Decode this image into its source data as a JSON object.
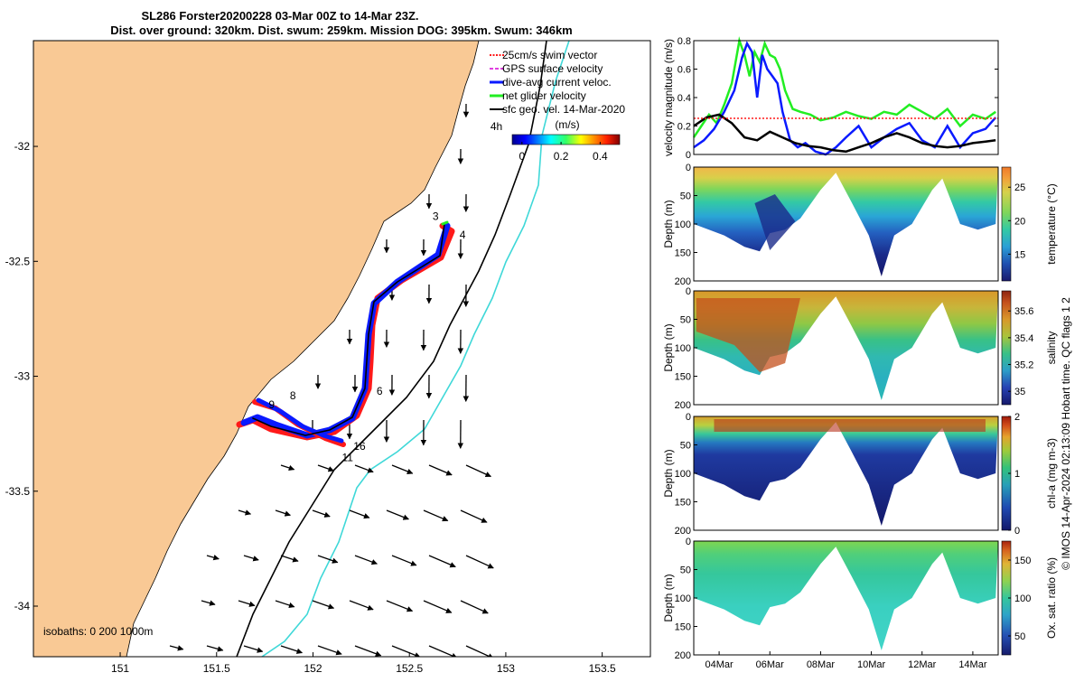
{
  "title": {
    "line1": "SL286 Forster20200228 03-Mar 00Z to 14-Mar 23Z.",
    "line2": "Dist. over ground: 320km. Dist. swum: 259km. Mission DOG: 395km. Swum: 346km"
  },
  "credit": "© IMOS 14-Apr-2024 02:13:09 Hobart time. QC flags 1  2",
  "colors": {
    "land": "#f9c995",
    "track_red": "#ff1a1a",
    "track_blue": "#0a1aff",
    "green": "#22ee22",
    "cyan": "#3fd8d8",
    "black": "#000000"
  },
  "chart_data": [
    {
      "type": "map",
      "name": "track-map",
      "x_ticks": [
        "151",
        "151.5",
        "152",
        "152.5",
        "153",
        "153.5"
      ],
      "x_tick_values": [
        151,
        151.5,
        152,
        152.5,
        153,
        153.5
      ],
      "y_ticks": [
        "-32",
        "-32.5",
        "-33",
        "-33.5",
        "-34"
      ],
      "y_tick_values": [
        -32,
        -32.5,
        -33,
        -33.5,
        -34
      ],
      "xlim": [
        150.55,
        153.75
      ],
      "ylim": [
        -34.22,
        -31.54
      ],
      "legend": [
        {
          "label": "25cm/s swim vector",
          "color": "#ff1a1a",
          "style": "dotted"
        },
        {
          "label": "GPS surface velocity",
          "color": "#e040e0",
          "style": "dashed"
        },
        {
          "label": "dive-avg current veloc.",
          "color": "#0a1aff",
          "style": "solid"
        },
        {
          "label": "net glider velocity",
          "color": "#22ee22",
          "style": "solid"
        },
        {
          "label": "sfc geo. vel. 14-Mar-2020",
          "color": "#000000",
          "style": "solid"
        }
      ],
      "colorbar": {
        "unit": "(m/s)",
        "ticks": [
          "0",
          "0.2",
          "0.4"
        ],
        "range": [
          -0.05,
          0.5
        ]
      },
      "isobath_label": "isobaths: 0   200  1000m",
      "track_labels": [
        {
          "text": "4h",
          "lon": 152.92,
          "lat": -31.93
        },
        {
          "text": "3",
          "lon": 152.62,
          "lat": -32.32
        },
        {
          "text": "4",
          "lon": 152.76,
          "lat": -32.4
        },
        {
          "text": "6",
          "lon": 152.33,
          "lat": -33.08
        },
        {
          "text": "9",
          "lon": 151.77,
          "lat": -33.14
        },
        {
          "text": "8",
          "lon": 151.88,
          "lat": -33.1
        },
        {
          "text": "16",
          "lon": 152.21,
          "lat": -33.32
        },
        {
          "text": "11",
          "lon": 152.15,
          "lat": -33.37
        }
      ]
    },
    {
      "type": "line",
      "name": "velocity-magnitude",
      "ylabel": "velocity magnitude (m/s)",
      "ylim": [
        0,
        0.8
      ],
      "y_ticks": [
        "0",
        "0.2",
        "0.4",
        "0.6",
        "0.8"
      ],
      "y_tick_values": [
        0,
        0.2,
        0.4,
        0.6,
        0.8
      ],
      "xlim": [
        3,
        15
      ],
      "series": [
        {
          "color": "#22ee22",
          "x": [
            3,
            3.3,
            3.6,
            3.9,
            4.2,
            4.5,
            4.8,
            5.0,
            5.2,
            5.4,
            5.6,
            5.8,
            6.0,
            6.2,
            6.4,
            6.6,
            6.9,
            7.2,
            7.6,
            8.0,
            8.5,
            9.0,
            9.5,
            10.0,
            10.5,
            11.0,
            11.5,
            12.0,
            12.5,
            13.0,
            13.5,
            14.0,
            14.5,
            14.9
          ],
          "y": [
            0.12,
            0.2,
            0.28,
            0.22,
            0.35,
            0.5,
            0.8,
            0.7,
            0.55,
            0.72,
            0.65,
            0.78,
            0.7,
            0.68,
            0.6,
            0.45,
            0.32,
            0.3,
            0.28,
            0.24,
            0.26,
            0.3,
            0.27,
            0.25,
            0.3,
            0.28,
            0.35,
            0.3,
            0.25,
            0.32,
            0.2,
            0.28,
            0.25,
            0.3
          ]
        },
        {
          "color": "#0a1aff",
          "x": [
            3,
            3.4,
            3.8,
            4.2,
            4.6,
            4.9,
            5.1,
            5.3,
            5.5,
            5.7,
            5.9,
            6.1,
            6.3,
            6.5,
            6.8,
            7.1,
            7.4,
            7.8,
            8.2,
            8.6,
            9.0,
            9.5,
            10.0,
            10.5,
            11.0,
            11.5,
            12.0,
            12.5,
            13.0,
            13.5,
            14.0,
            14.5,
            14.9
          ],
          "y": [
            0.05,
            0.1,
            0.18,
            0.3,
            0.45,
            0.68,
            0.78,
            0.72,
            0.4,
            0.7,
            0.6,
            0.55,
            0.5,
            0.3,
            0.1,
            0.05,
            0.08,
            0.02,
            0.0,
            0.05,
            0.12,
            0.2,
            0.05,
            0.12,
            0.18,
            0.22,
            0.1,
            0.05,
            0.2,
            0.05,
            0.15,
            0.18,
            0.26
          ]
        },
        {
          "color": "#000000",
          "x": [
            3,
            3.5,
            4.0,
            4.5,
            5.0,
            5.5,
            6.0,
            6.5,
            7.0,
            7.5,
            8.0,
            8.5,
            9.0,
            9.5,
            10.0,
            10.5,
            11.0,
            11.5,
            12.0,
            12.5,
            13.0,
            13.5,
            14.0,
            14.5,
            14.9
          ],
          "y": [
            0.2,
            0.26,
            0.28,
            0.22,
            0.12,
            0.1,
            0.16,
            0.12,
            0.08,
            0.06,
            0.05,
            0.03,
            0.02,
            0.05,
            0.08,
            0.12,
            0.15,
            0.12,
            0.08,
            0.06,
            0.05,
            0.06,
            0.08,
            0.09,
            0.1
          ]
        }
      ]
    },
    {
      "type": "heatmap",
      "name": "temperature-section",
      "ylabel": "Depth (m)",
      "colorbar_label": "temperature (°C)",
      "colorbar_ticks": [
        "25",
        "20",
        "15"
      ],
      "colorbar_tick_values": [
        25,
        20,
        15
      ],
      "clim": [
        11,
        28
      ],
      "y_ticks": [
        "0",
        "50",
        "100",
        "150",
        "200"
      ]
    },
    {
      "type": "heatmap",
      "name": "salinity-section",
      "ylabel": "Depth (m)",
      "colorbar_label": "salinity",
      "colorbar_ticks": [
        "35.6",
        "35.4",
        "35.2",
        "35"
      ],
      "colorbar_tick_values": [
        35.6,
        35.4,
        35.2,
        35.0
      ],
      "clim": [
        34.9,
        35.75
      ],
      "y_ticks": [
        "0",
        "50",
        "100",
        "150",
        "200"
      ]
    },
    {
      "type": "heatmap",
      "name": "chla-section",
      "ylabel": "Depth (m)",
      "colorbar_label": "chl-a (mg m-3)",
      "colorbar_ticks": [
        "2",
        "1",
        "0"
      ],
      "colorbar_tick_values": [
        2,
        1,
        0
      ],
      "clim": [
        0,
        2
      ],
      "y_ticks": [
        "0",
        "50",
        "100",
        "150",
        "200"
      ]
    },
    {
      "type": "heatmap",
      "name": "oxygen-section",
      "ylabel": "Depth (m)",
      "colorbar_label": "Ox. sat. ratio (%)",
      "colorbar_ticks": [
        "150",
        "100",
        "50"
      ],
      "colorbar_tick_values": [
        150,
        100,
        50
      ],
      "clim": [
        25,
        175
      ],
      "y_ticks": [
        "0",
        "50",
        "100",
        "150",
        "200"
      ],
      "x_ticks": [
        "04Mar",
        "06Mar",
        "08Mar",
        "10Mar",
        "12Mar",
        "14Mar"
      ],
      "x_tick_values": [
        4,
        6,
        8,
        10,
        12,
        14
      ],
      "xlim": [
        3,
        15
      ]
    }
  ]
}
